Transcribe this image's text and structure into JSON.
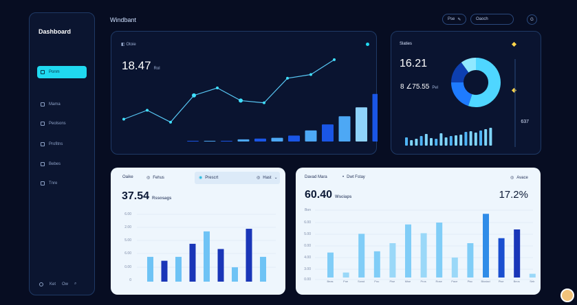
{
  "sidebar": {
    "title": "Dashboard",
    "items": [
      {
        "label": "Ponm",
        "active": true,
        "icon": "home-icon"
      },
      {
        "label": "Mama",
        "active": false,
        "icon": "grid-icon"
      },
      {
        "label": "Peolsons",
        "active": false,
        "icon": "users-icon"
      },
      {
        "label": "Profitns",
        "active": false,
        "icon": "folder-icon"
      },
      {
        "label": "Bebes",
        "active": false,
        "icon": "document-icon"
      },
      {
        "label": "Tnre",
        "active": false,
        "icon": "layers-icon"
      }
    ],
    "footer": {
      "label_a": "Ket",
      "label_b": "Ow"
    }
  },
  "header": {
    "title": "Windbant",
    "pill_a": "Pse",
    "pill_b": "Oaoch",
    "round": "G"
  },
  "card_line": {
    "label": "Otoie",
    "value": "18.47",
    "unit": "Rol"
  },
  "card_donut": {
    "label": "Slaties",
    "value_a": "16.21",
    "value_b": "8  ∠75.55",
    "unit_b": "Pel",
    "side_value": "637"
  },
  "card_bars_left": {
    "tab_a": "Oaike",
    "tab_b": "Fehus",
    "tab_c": "Prescrt",
    "tab_d": "Hast",
    "value": "37.54",
    "unit": "Rssosags",
    "y_labels": [
      "6.00",
      "2.00",
      "5.00",
      "6.00",
      "0.00",
      "0"
    ]
  },
  "card_bars_right": {
    "title": "Davad Mara",
    "title_b": "Dwt Fstay",
    "tag": "Avace",
    "value": "60.40",
    "unit": "Wsciaps",
    "percent": "17.2%",
    "y_labels": [
      "Bon",
      "6.00",
      "5.00",
      "0.00",
      "4.00",
      "3.00",
      "0.00"
    ],
    "x_labels": [
      "Beas",
      "Poe",
      "Sowd",
      "Pou",
      "Pise",
      "Mise",
      "Pros",
      "Rose",
      "Pace",
      "Pisc",
      "Blusiad",
      "Pise",
      "Beos",
      "Seb"
    ]
  },
  "chart_data": [
    {
      "type": "line",
      "x": [
        1,
        2,
        3,
        4,
        5,
        6,
        7,
        8,
        9,
        10
      ],
      "values": [
        30,
        42,
        26,
        62,
        72,
        55,
        52,
        85,
        90,
        110
      ],
      "bars": [
        0,
        0,
        0,
        2,
        3,
        4,
        7,
        14,
        22,
        33,
        45,
        63,
        79,
        86
      ],
      "ylim": [
        0,
        120
      ]
    },
    {
      "type": "pie",
      "values": [
        55,
        20,
        15,
        10
      ],
      "colors": [
        "#4fd6ff",
        "#1e7bff",
        "#0d3fb0",
        "#8fe8ff"
      ]
    },
    {
      "type": "bar",
      "values": [
        12,
        8,
        10,
        14,
        17,
        11,
        10,
        18,
        12,
        14,
        15,
        16,
        20,
        21,
        19,
        22,
        24,
        26
      ],
      "ylim": [
        0,
        30
      ]
    },
    {
      "type": "bar",
      "values": [
        38,
        32,
        38,
        58,
        77,
        50,
        22,
        81,
        38
      ],
      "colors": [
        "#6ec3f5",
        "#1a36b8",
        "#6ec3f5",
        "#1a36b8",
        "#6ec3f5",
        "#1a36b8",
        "#6ec3f5",
        "#1a36b8",
        "#6ec3f5"
      ],
      "ylim": [
        0,
        100
      ]
    },
    {
      "type": "bar",
      "values": [
        40,
        8,
        70,
        42,
        55,
        85,
        71,
        88,
        32,
        55,
        102,
        63,
        77,
        6
      ],
      "colors": [
        "#80cdf7",
        "#9ad8f8",
        "#80cdf7",
        "#80cdf7",
        "#9ad8f8",
        "#80cdf7",
        "#9ad8f8",
        "#80cdf7",
        "#9ad8f8",
        "#80cdf7",
        "#2f8ce8",
        "#1a4fd0",
        "#1a36b8",
        "#9ad8f8"
      ],
      "ylim": [
        0,
        110
      ]
    }
  ]
}
